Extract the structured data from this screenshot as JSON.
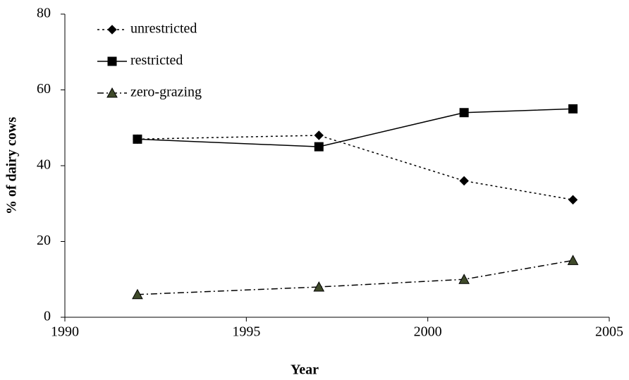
{
  "chart_data": {
    "type": "line",
    "x_label": "Year",
    "y_label": "% of dairy cows",
    "x": [
      1992,
      1997,
      2001,
      2004
    ],
    "series": [
      {
        "name": "unrestricted",
        "color": "#000000",
        "marker": "diamond",
        "dash": "dotted",
        "values": [
          47,
          48,
          36,
          31
        ]
      },
      {
        "name": "restricted",
        "color": "#000000",
        "marker": "square",
        "dash": "solid",
        "values": [
          47,
          45,
          54,
          55
        ]
      },
      {
        "name": "zero-grazing",
        "color": "#000000",
        "marker_fill": "#3f4a2a",
        "marker": "triangle",
        "dash": "dashdot",
        "values": [
          6,
          8,
          10,
          15
        ]
      }
    ],
    "xlim": [
      1990,
      2005
    ],
    "xticks": [
      1990,
      1995,
      2000,
      2005
    ],
    "ylim": [
      0,
      80
    ],
    "yticks": [
      0,
      20,
      40,
      60,
      80
    ],
    "grid": false,
    "legend": "top-left"
  }
}
